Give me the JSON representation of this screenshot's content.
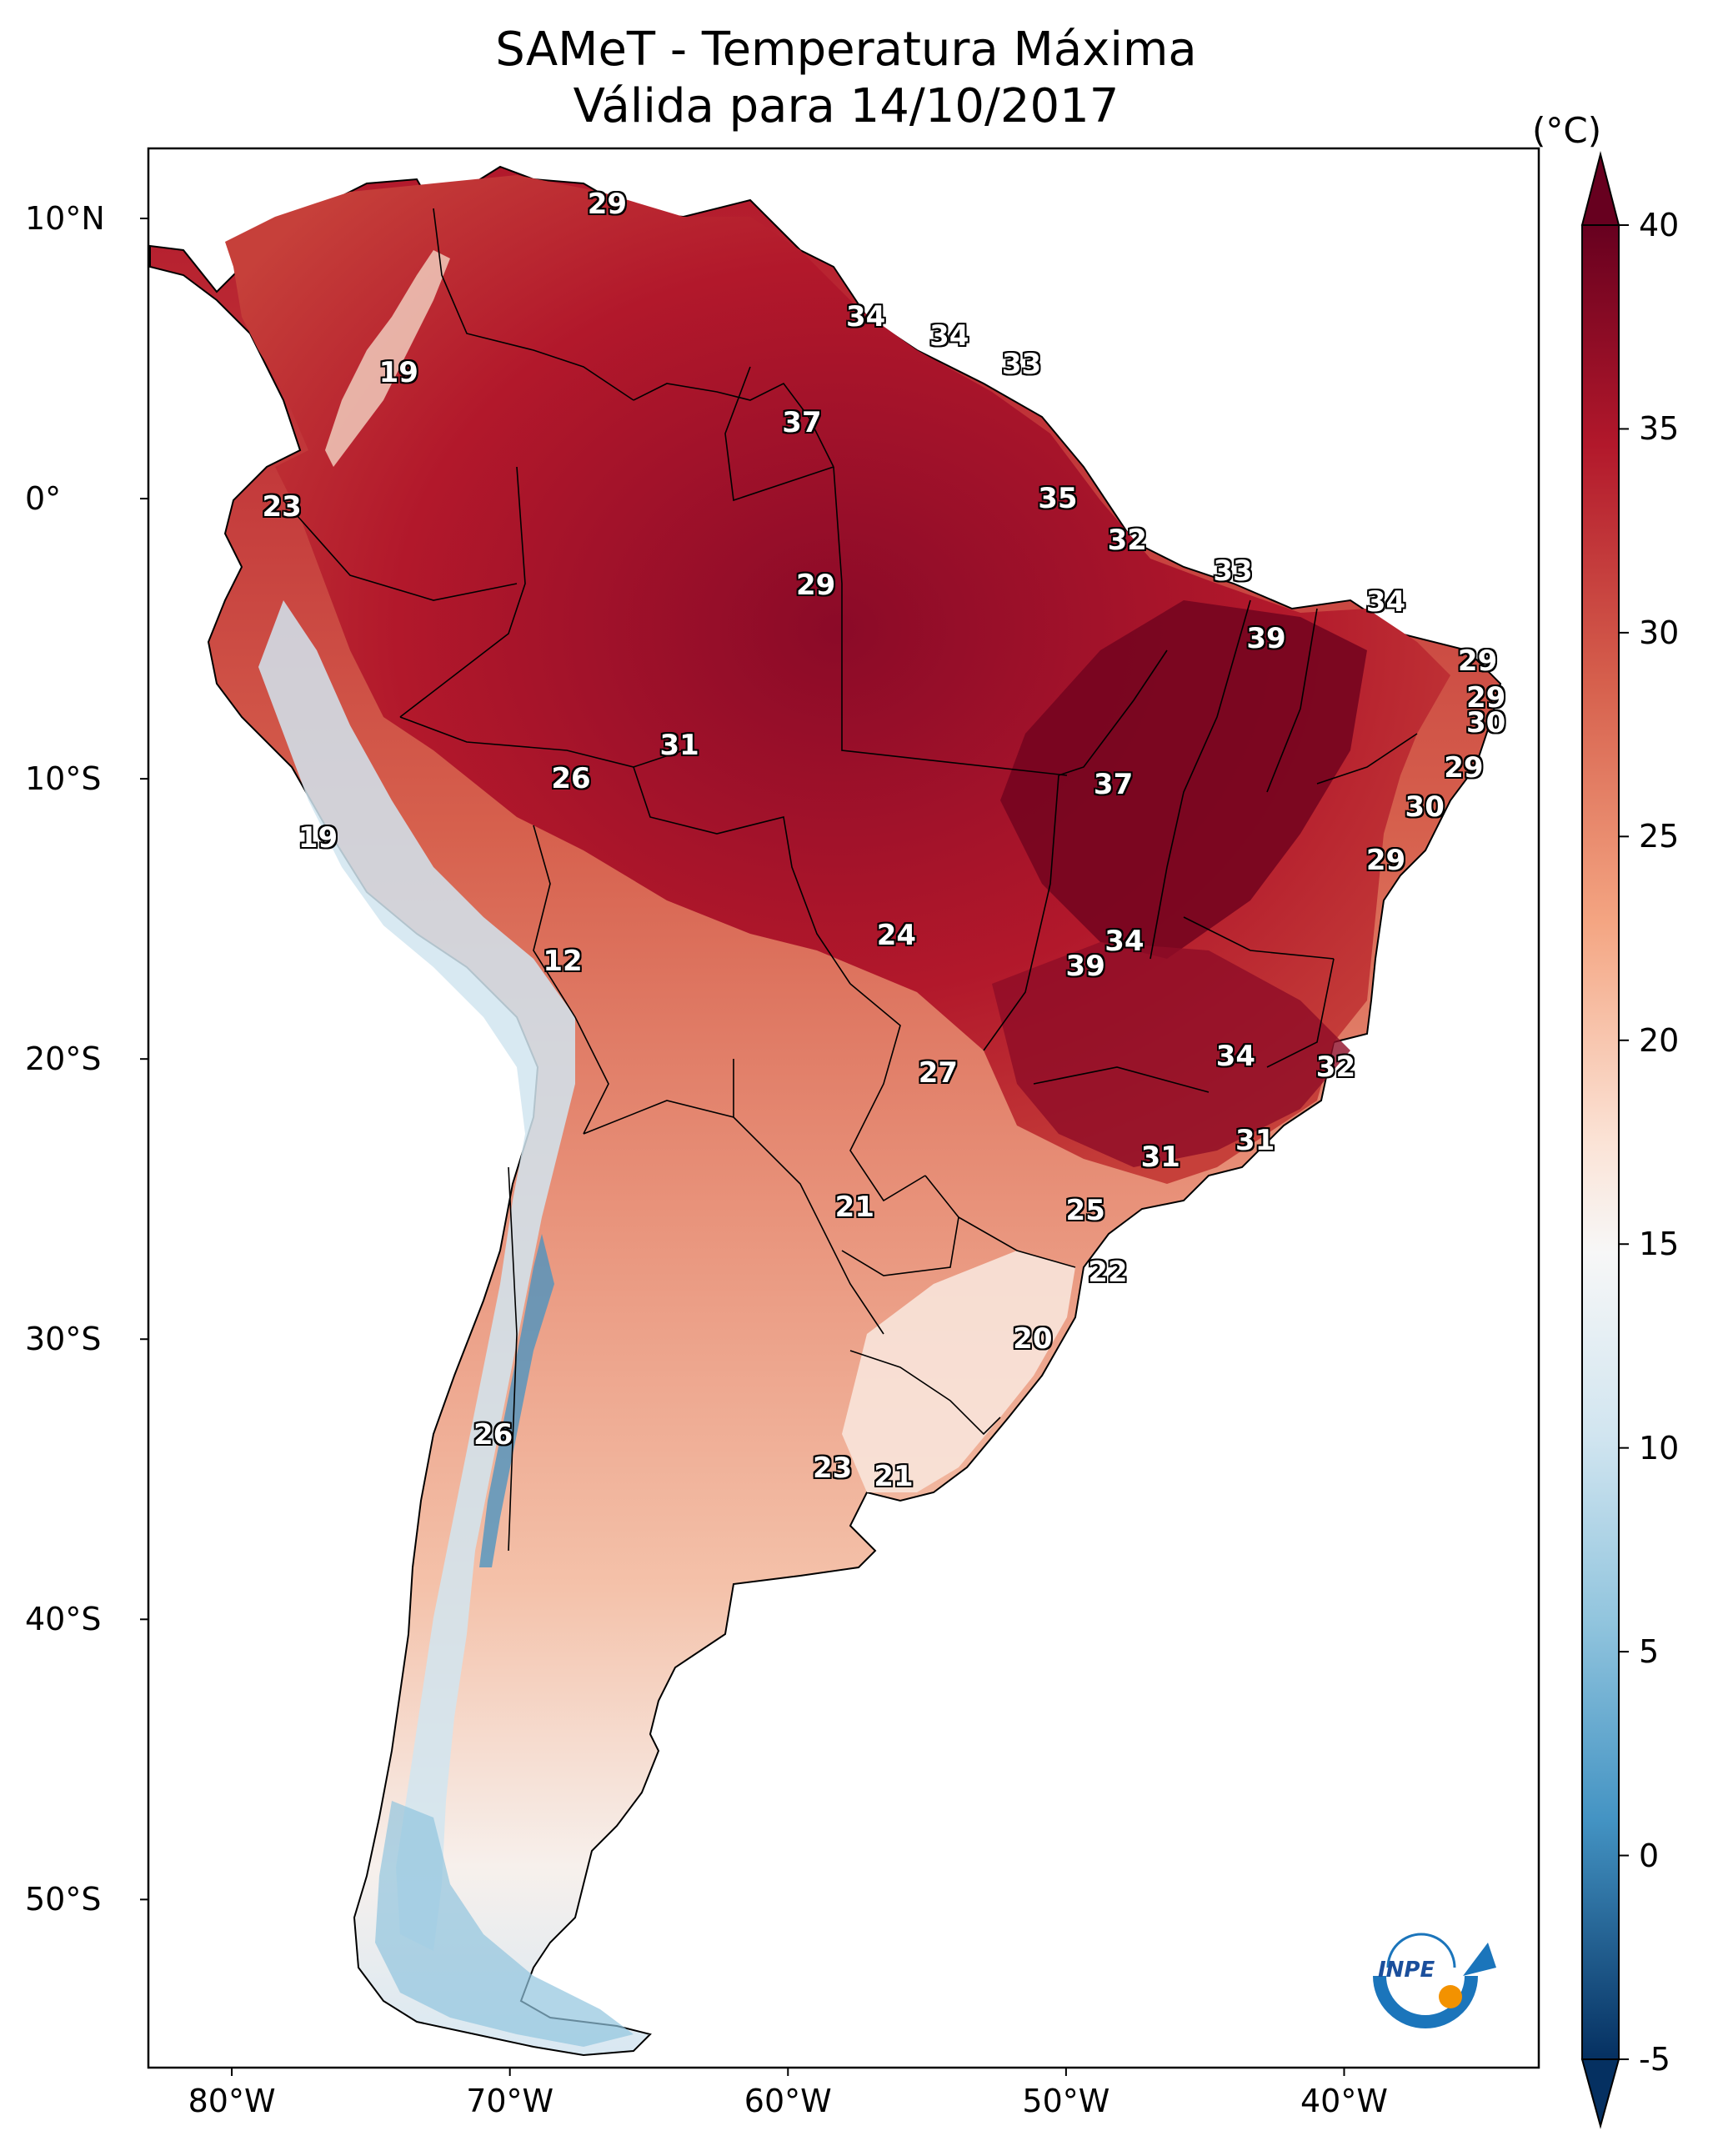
{
  "title": {
    "line1": "SAMeT - Temperatura Máxima",
    "line2": "Válida para 14/10/2017"
  },
  "axes": {
    "lat_ticks": [
      "10°N",
      "0°",
      "10°S",
      "20°S",
      "30°S",
      "40°S",
      "50°S"
    ],
    "lon_ticks": [
      "80°W",
      "70°W",
      "60°W",
      "50°W",
      "40°W"
    ]
  },
  "colorbar": {
    "unit": "(°C)",
    "ticks": [
      "40",
      "35",
      "30",
      "25",
      "20",
      "15",
      "10",
      "5",
      "0",
      "-5"
    ],
    "range": [
      -5,
      40
    ],
    "colors": {
      "hot": "#67001f",
      "warm": "#d6604d",
      "neutral": "#f7f7f7",
      "cool": "#4393c3",
      "cold": "#053061"
    }
  },
  "station_values": [
    {
      "label": "29",
      "lon": -66.5,
      "lat": 10.5
    },
    {
      "label": "34",
      "lon": -57.2,
      "lat": 6.5
    },
    {
      "label": "34",
      "lon": -54.2,
      "lat": 5.8
    },
    {
      "label": "33",
      "lon": -51.6,
      "lat": 4.8
    },
    {
      "label": "19",
      "lon": -74.0,
      "lat": 4.5
    },
    {
      "label": "37",
      "lon": -59.5,
      "lat": 2.7
    },
    {
      "label": "23",
      "lon": -78.2,
      "lat": -0.3
    },
    {
      "label": "35",
      "lon": -50.3,
      "lat": 0.0
    },
    {
      "label": "32",
      "lon": -47.8,
      "lat": -1.5
    },
    {
      "label": "33",
      "lon": -44.0,
      "lat": -2.6
    },
    {
      "label": "29",
      "lon": -59.0,
      "lat": -3.1
    },
    {
      "label": "34",
      "lon": -38.5,
      "lat": -3.7
    },
    {
      "label": "39",
      "lon": -42.8,
      "lat": -5.0
    },
    {
      "label": "29",
      "lon": -35.2,
      "lat": -5.8
    },
    {
      "label": "29",
      "lon": -34.9,
      "lat": -7.1
    },
    {
      "label": "30",
      "lon": -34.9,
      "lat": -8.0
    },
    {
      "label": "31",
      "lon": -63.9,
      "lat": -8.8
    },
    {
      "label": "29",
      "lon": -35.7,
      "lat": -9.6
    },
    {
      "label": "26",
      "lon": -67.8,
      "lat": -10.0
    },
    {
      "label": "37",
      "lon": -48.3,
      "lat": -10.2
    },
    {
      "label": "30",
      "lon": -37.1,
      "lat": -11.0
    },
    {
      "label": "19",
      "lon": -76.9,
      "lat": -12.1
    },
    {
      "label": "29",
      "lon": -38.5,
      "lat": -12.9
    },
    {
      "label": "24",
      "lon": -56.1,
      "lat": -15.6
    },
    {
      "label": "34",
      "lon": -47.9,
      "lat": -15.8
    },
    {
      "label": "39",
      "lon": -49.3,
      "lat": -16.7
    },
    {
      "label": "12",
      "lon": -68.1,
      "lat": -16.5
    },
    {
      "label": "34",
      "lon": -43.9,
      "lat": -19.9
    },
    {
      "label": "32",
      "lon": -40.3,
      "lat": -20.3
    },
    {
      "label": "27",
      "lon": -54.6,
      "lat": -20.5
    },
    {
      "label": "31",
      "lon": -46.6,
      "lat": -23.5
    },
    {
      "label": "31",
      "lon": -43.2,
      "lat": -22.9
    },
    {
      "label": "21",
      "lon": -57.6,
      "lat": -25.3
    },
    {
      "label": "25",
      "lon": -49.3,
      "lat": -25.4
    },
    {
      "label": "22",
      "lon": -48.5,
      "lat": -27.6
    },
    {
      "label": "20",
      "lon": -51.2,
      "lat": -30.0
    },
    {
      "label": "26",
      "lon": -70.6,
      "lat": -33.4
    },
    {
      "label": "23",
      "lon": -58.4,
      "lat": -34.6
    },
    {
      "label": "21",
      "lon": -56.2,
      "lat": -34.9
    }
  ],
  "logo": {
    "text": "INPE"
  }
}
